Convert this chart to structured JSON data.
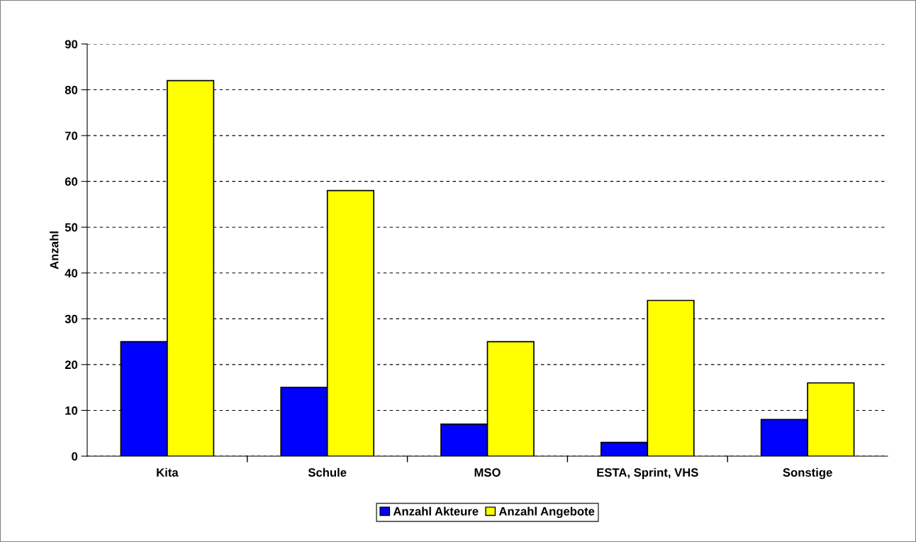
{
  "chart_data": {
    "type": "bar",
    "ylabel": "Anzahl",
    "categories": [
      "Kita",
      "Schule",
      "MSO",
      "ESTA, Sprint, VHS",
      "Sonstige"
    ],
    "series": [
      {
        "name": "Anzahl Akteure",
        "color": "#0000ff",
        "values": [
          25,
          15,
          7,
          3,
          8
        ]
      },
      {
        "name": "Anzahl Angebote",
        "color": "#ffff00",
        "values": [
          82,
          58,
          25,
          34,
          16
        ]
      }
    ],
    "ylim": [
      0,
      90
    ],
    "yticks": [
      0,
      10,
      20,
      30,
      40,
      50,
      60,
      70,
      80,
      90
    ],
    "grid": "y",
    "legend": "bottom"
  }
}
